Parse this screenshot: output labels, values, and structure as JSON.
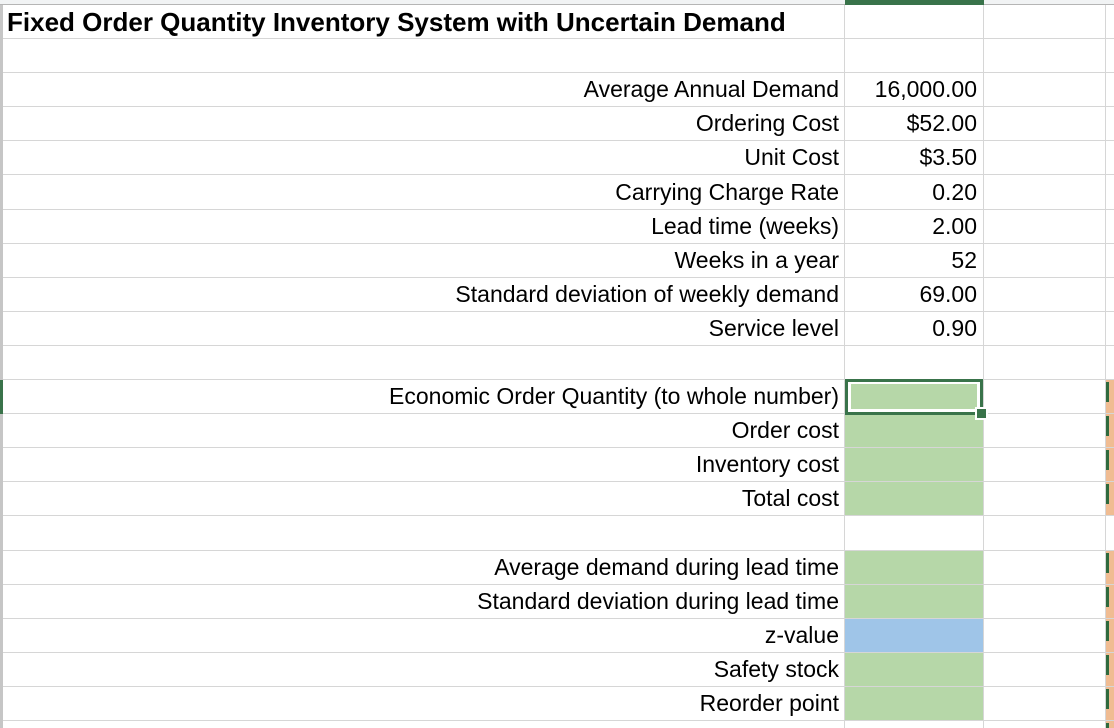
{
  "sheet": {
    "title": "Fixed Order Quantity Inventory System with Uncertain Demand",
    "inputs": [
      {
        "label": "Average Annual Demand",
        "value": "16,000.00"
      },
      {
        "label": "Ordering Cost",
        "value": "$52.00"
      },
      {
        "label": "Unit Cost",
        "value": "$3.50"
      },
      {
        "label": "Carrying Charge Rate",
        "value": "0.20"
      },
      {
        "label": "Lead time (weeks)",
        "value": "2.00"
      },
      {
        "label": "Weeks in a year",
        "value": "52"
      },
      {
        "label": "Standard deviation of weekly demand",
        "value": "69.00"
      },
      {
        "label": "Service level",
        "value": "0.90"
      }
    ],
    "eoq_section": [
      {
        "label": "Economic Order Quantity (to whole number)",
        "value": ""
      },
      {
        "label": "Order cost",
        "value": ""
      },
      {
        "label": "Inventory cost",
        "value": ""
      },
      {
        "label": "Total cost",
        "value": ""
      }
    ],
    "reorder_section": [
      {
        "label": "Average demand during lead time",
        "value": ""
      },
      {
        "label": "Standard deviation during lead time",
        "value": ""
      },
      {
        "label": "z-value",
        "value": ""
      },
      {
        "label": "Safety stock",
        "value": ""
      },
      {
        "label": "Reorder point",
        "value": ""
      }
    ],
    "colors": {
      "selection_green": "#39734a",
      "answer_fill_green": "#b6d7a8",
      "z_value_fill_blue": "#9fc5e8",
      "offscreen_fill_orange": "#f0bc92",
      "dashed_border_green": "#2f6a3d",
      "gridline": "#d6d6d6"
    }
  }
}
